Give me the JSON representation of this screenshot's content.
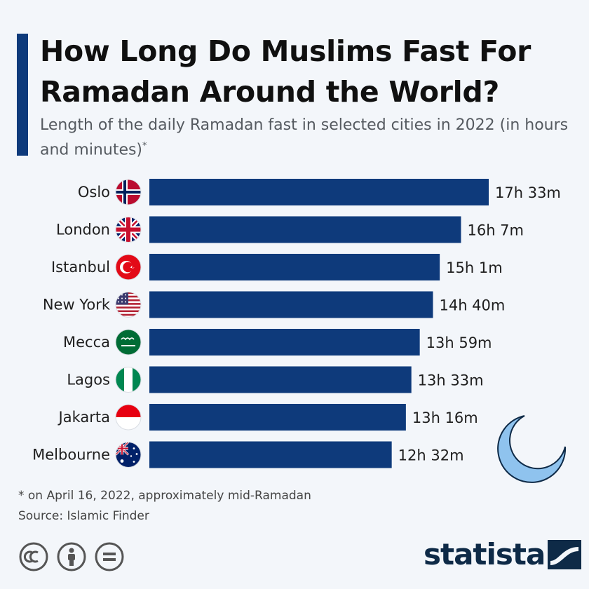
{
  "header": {
    "title": "How Long Do Muslims Fast For Ramadan Around the World?",
    "subtitle": "Length of the daily Ramadan fast in selected cities in 2022 (in hours and minutes)",
    "subtitle_marker": "*"
  },
  "chart_data": {
    "type": "bar",
    "orientation": "horizontal",
    "title": "How Long Do Muslims Fast For Ramadan Around the World?",
    "subtitle": "Length of the daily Ramadan fast in selected cities in 2022 (in hours and minutes)",
    "unit": "hours",
    "categories": [
      "Oslo",
      "London",
      "Istanbul",
      "New York",
      "Mecca",
      "Lagos",
      "Jakarta",
      "Melbourne"
    ],
    "values": [
      17.55,
      16.1167,
      15.0167,
      14.6667,
      13.9833,
      13.55,
      13.2667,
      12.5333
    ],
    "value_labels": [
      "17h 33m",
      "16h 7m",
      "15h 1m",
      "14h 40m",
      "13h 59m",
      "13h 33m",
      "13h 16m",
      "12h 32m"
    ],
    "flags": [
      "norway-flag-icon",
      "uk-flag-icon",
      "turkey-flag-icon",
      "usa-flag-icon",
      "saudi-arabia-flag-icon",
      "nigeria-flag-icon",
      "indonesia-flag-icon",
      "australia-flag-icon"
    ],
    "bar_color": "#0e3a7b",
    "xlim": [
      0,
      17.55
    ],
    "grid": false,
    "legend": "none"
  },
  "footer": {
    "footnote": "* on April 16, 2022, approximately mid-Ramadan",
    "source": "Source: Islamic Finder",
    "logo": "statista"
  },
  "colors": {
    "accent": "#0e3a7b",
    "moon": "#8fc3ee",
    "background": "#f3f6fa"
  }
}
